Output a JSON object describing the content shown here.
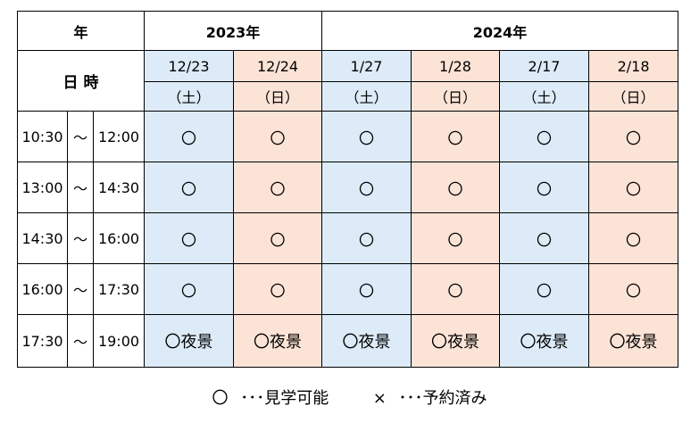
{
  "header": {
    "year_label": "年",
    "datetime_label": "日 時",
    "years": [
      {
        "label": "2023年",
        "span": 2
      },
      {
        "label": "2024年",
        "span": 4
      }
    ]
  },
  "columns": [
    {
      "date": "12/23",
      "weekday": "（土）",
      "type": "sat"
    },
    {
      "date": "12/24",
      "weekday": "（日）",
      "type": "sun"
    },
    {
      "date": "1/27",
      "weekday": "（土）",
      "type": "sat"
    },
    {
      "date": "1/28",
      "weekday": "（日）",
      "type": "sun"
    },
    {
      "date": "2/17",
      "weekday": "（土）",
      "type": "sat"
    },
    {
      "date": "2/18",
      "weekday": "（日）",
      "type": "sun"
    }
  ],
  "slots": [
    {
      "start": "10:30",
      "sep": "〜",
      "end": "12:00",
      "cells": [
        "〇",
        "〇",
        "〇",
        "〇",
        "〇",
        "〇"
      ]
    },
    {
      "start": "13:00",
      "sep": "〜",
      "end": "14:30",
      "cells": [
        "〇",
        "〇",
        "〇",
        "〇",
        "〇",
        "〇"
      ]
    },
    {
      "start": "14:30",
      "sep": "〜",
      "end": "16:00",
      "cells": [
        "〇",
        "〇",
        "〇",
        "〇",
        "〇",
        "〇"
      ]
    },
    {
      "start": "16:00",
      "sep": "〜",
      "end": "17:30",
      "cells": [
        "〇",
        "〇",
        "〇",
        "〇",
        "〇",
        "〇"
      ]
    },
    {
      "start": "17:30",
      "sep": "〜",
      "end": "19:00",
      "cells": [
        "〇",
        "〇",
        "〇",
        "〇",
        "〇",
        "〇"
      ],
      "note": "夜景"
    }
  ],
  "legend": {
    "available_mark": "〇",
    "available_text": "･･･見学可能",
    "booked_mark": "×",
    "booked_text": "･･･予約済み"
  },
  "colors": {
    "saturday_bg": "#dcebf7",
    "sunday_bg": "#fbe3d6",
    "border": "#000000"
  }
}
